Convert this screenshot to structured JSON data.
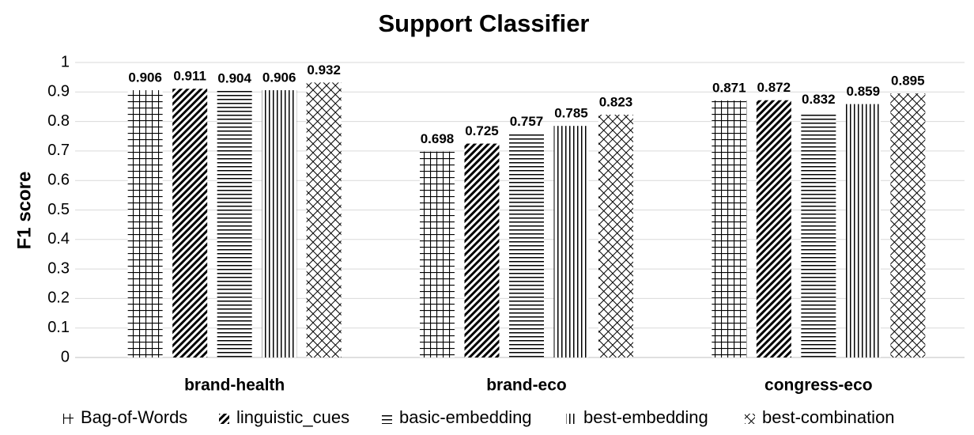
{
  "chart_data": {
    "type": "bar",
    "title": "Support Classifier",
    "y_label": "F1 score",
    "categories": [
      "brand-health",
      "brand-eco",
      "congress-eco"
    ],
    "series": [
      {
        "name": "Bag-of-Words",
        "color": "#000000",
        "pattern": "grid",
        "values": [
          0.906,
          0.698,
          0.871
        ]
      },
      {
        "name": "linguistic_cues",
        "color": "#000000",
        "pattern": "diagonal",
        "values": [
          0.911,
          0.725,
          0.872
        ]
      },
      {
        "name": "basic-embedding",
        "color": "#000000",
        "pattern": "horizontal",
        "values": [
          0.904,
          0.757,
          0.832
        ]
      },
      {
        "name": "best-embedding",
        "color": "#000000",
        "pattern": "vertical",
        "values": [
          0.906,
          0.785,
          0.859
        ]
      },
      {
        "name": "best-combination",
        "color": "#000000",
        "pattern": "crosshatch",
        "values": [
          0.932,
          0.823,
          0.895
        ]
      }
    ],
    "ylim": [
      0,
      1
    ],
    "yticks": [
      0,
      0.1,
      0.2,
      0.3,
      0.4,
      0.5,
      0.6,
      0.7,
      0.8,
      0.9,
      1
    ],
    "grid": true,
    "legend": "bottom"
  }
}
